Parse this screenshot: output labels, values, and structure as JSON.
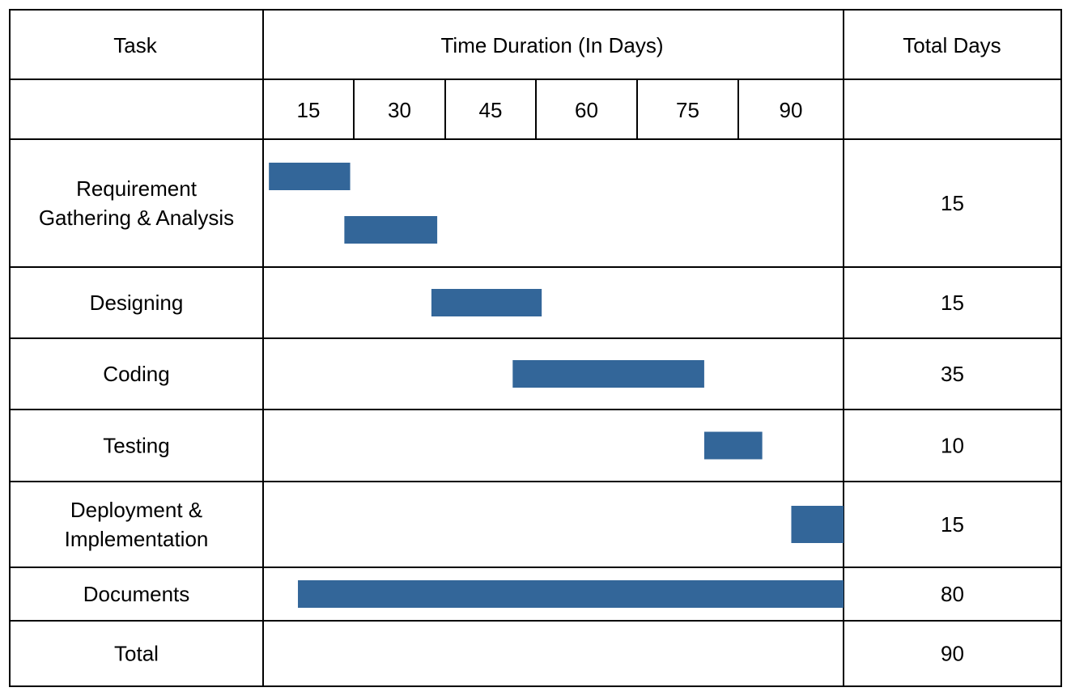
{
  "table": {
    "header_task": "Task",
    "header_duration": "Time Duration (In Days)",
    "header_total": "Total Days"
  },
  "chart_data": {
    "type": "table",
    "x_ticks": [
      "15",
      "30",
      "45",
      "60",
      "75",
      "90"
    ],
    "bar_color": "#336699",
    "rows": [
      {
        "task": [
          "Requirement",
          "Gathering & Analysis"
        ],
        "total_days": "15",
        "bars": [
          {
            "start": 1,
            "end": 15
          },
          {
            "start": 14,
            "end": 30
          }
        ]
      },
      {
        "task": [
          "Designing"
        ],
        "total_days": "15",
        "bars": [
          {
            "start": 29,
            "end": 48
          }
        ]
      },
      {
        "task": [
          "Coding"
        ],
        "total_days": "35",
        "bars": [
          {
            "start": 43,
            "end": 76
          }
        ]
      },
      {
        "task": [
          "Testing"
        ],
        "total_days": "10",
        "bars": [
          {
            "start": 76,
            "end": 86
          }
        ]
      },
      {
        "task": [
          "Deployment &",
          "Implementation"
        ],
        "total_days": "15",
        "bars": [
          {
            "start": 91,
            "end": 100
          }
        ]
      },
      {
        "task": [
          "Documents"
        ],
        "total_days": "80",
        "bars": [
          {
            "start": 6,
            "end": 100
          }
        ]
      },
      {
        "task": [
          "Total"
        ],
        "total_days": "90",
        "bars": []
      }
    ]
  }
}
